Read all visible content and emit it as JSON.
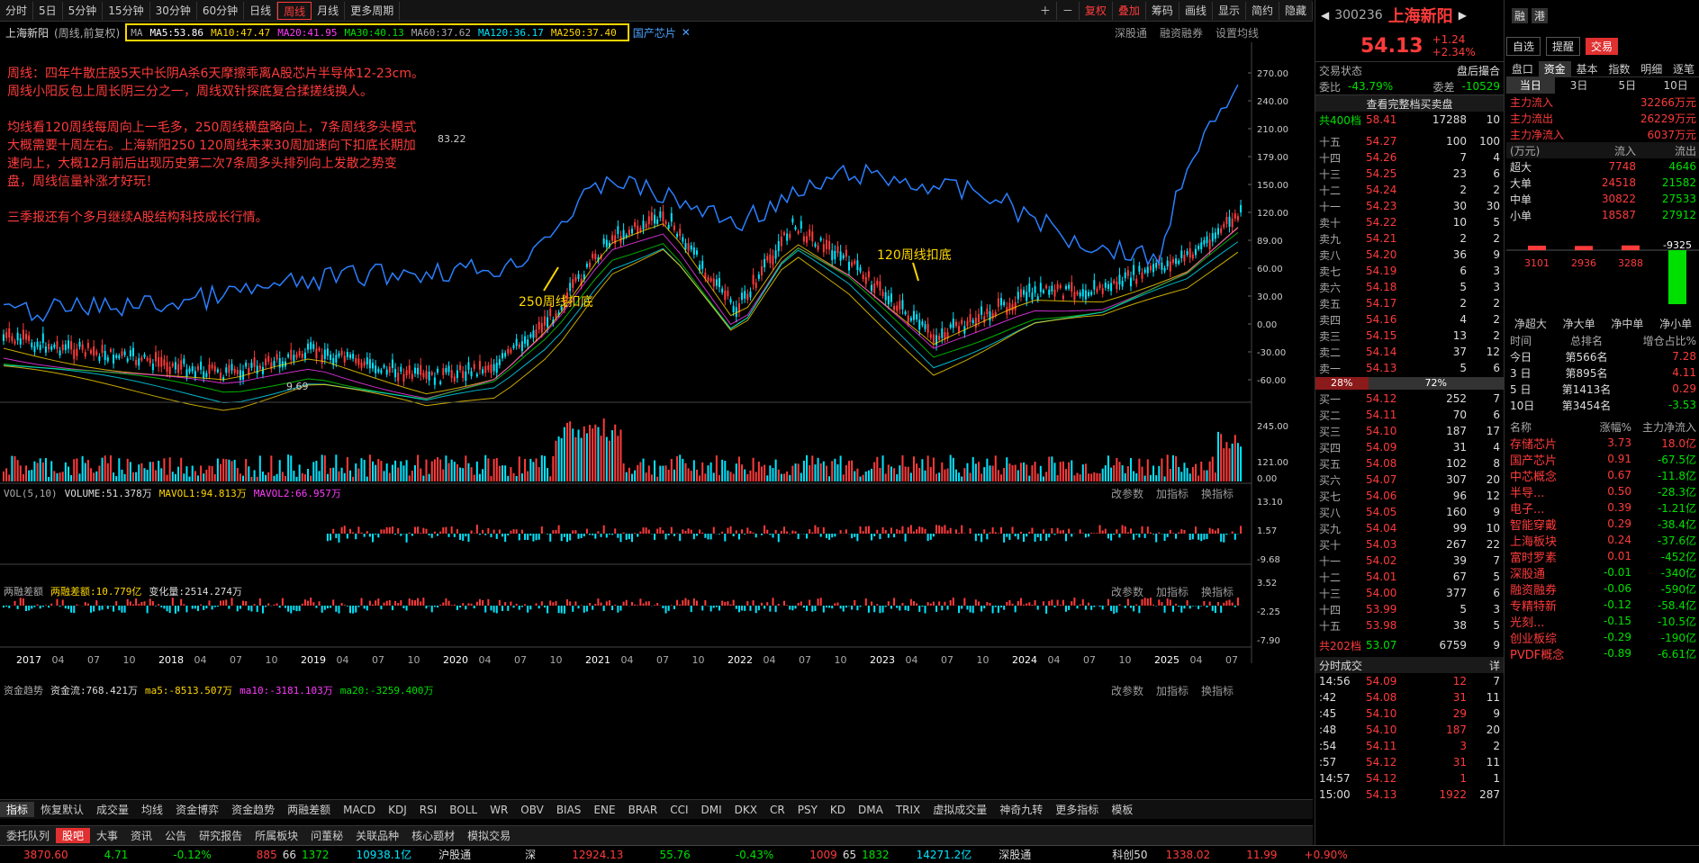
{
  "toolbar": {
    "items": [
      "分时",
      "5日",
      "5分钟",
      "15分钟",
      "30分钟",
      "60分钟",
      "日线",
      "周线",
      "月线",
      "更多周期"
    ],
    "active": "周线",
    "right": [
      "复权",
      "叠加",
      "筹码",
      "画线",
      "显示",
      "简约",
      "隐藏"
    ]
  },
  "chart": {
    "stock_label": "上海新阳",
    "period_label": "(周线,前复权)",
    "ma_prefix": "MA",
    "ma": [
      "MA5:53.86",
      "MA10:47.47",
      "MA20:41.95",
      "MA30:40.13",
      "MA60:37.62",
      "MA120:36.17",
      "MA250:37.40"
    ],
    "ma_colors": [
      "#ffffff",
      "#ffd700",
      "#ff3bff",
      "#00e000",
      "#a0a0a0",
      "#00e5ff",
      "#ffd700"
    ],
    "concept_tag": "国产芯片",
    "right_links": [
      "深股通",
      "融资融券",
      "设置均线"
    ],
    "y_labels": [
      "270.00",
      "240.00",
      "210.00",
      "179.00",
      "150.00",
      "120.00",
      "89.00",
      "60.00",
      "30.00",
      "0.00",
      "-30.00",
      "-60.00"
    ],
    "high_label": "83.22",
    "low_label": "9.69",
    "notes": [
      "周线：四年牛散庄股5天中长阴A杀6天摩擦乖离A股芯片半导体12-23cm。",
      "周线小阳反包上周长阴三分之一，周线双针探底复合揉搓线换人。",
      "",
      "均线看120周线每周向上一毛多，250周线横盘略向上，7条周线多头模式",
      "大概需要十周左右。上海新阳250 120周线未来30周加速向下扣底长期加",
      "速向上，大概12月前后出现历史第二次7条周多头排列向上发散之势变",
      "盘，周线信量补涨才好玩！",
      "",
      "三季报还有个多月继续A股结构科技成长行情。"
    ],
    "annot1": "250周线扣底",
    "annot2": "120周线扣底"
  },
  "vol": {
    "label": "VOL(5,10)",
    "items": [
      "VOLUME:51.378万",
      "MAVOL1:94.813万",
      "MAVOL2:66.957万"
    ],
    "y": [
      "245.00",
      "121.00",
      "0.00"
    ],
    "links": [
      "改参数",
      "加指标",
      "换指标"
    ]
  },
  "margin": {
    "label": "两融差额",
    "items": [
      "两融差额:10.779亿",
      "变化量:2514.274万"
    ],
    "y": [
      "13.10",
      "1.57",
      "-9.68"
    ]
  },
  "fund": {
    "label": "资金趋势",
    "items": [
      "资金流:768.421万",
      "ma5:-8513.507万",
      "ma10:-3181.103万",
      "ma20:-3259.400万"
    ],
    "y": [
      "3.52",
      "-2.25",
      "-7.90"
    ]
  },
  "xaxis": [
    "2017",
    "04",
    "07",
    "10",
    "2018",
    "04",
    "07",
    "10",
    "2019",
    "04",
    "07",
    "10",
    "2020",
    "04",
    "07",
    "10",
    "2021",
    "04",
    "07",
    "10",
    "2022",
    "04",
    "07",
    "10",
    "2023",
    "04",
    "07",
    "10",
    "2024",
    "04",
    "07",
    "10",
    "2025",
    "04",
    "07"
  ],
  "indicator_tabs": [
    "指标",
    "恢复默认",
    "成交量",
    "均线",
    "资金博弈",
    "资金趋势",
    "两融差额",
    "MACD",
    "KDJ",
    "RSI",
    "BOLL",
    "WR",
    "OBV",
    "BIAS",
    "ENE",
    "BRAR",
    "CCI",
    "DMI",
    "DKX",
    "CR",
    "PSY",
    "KD",
    "DMA",
    "TRIX",
    "虚拟成交量",
    "神奇九转",
    "更多指标",
    "模板"
  ],
  "bottom_tabs": [
    "委托队列",
    "股吧",
    "大事",
    "资讯",
    "公告",
    "研究报告",
    "所属板块",
    "问董秘",
    "关联品种",
    "核心题材",
    "模拟交易"
  ],
  "quote": {
    "code": "300236",
    "name": "上海新阳",
    "price": "54.13",
    "change": "+1.24",
    "pct": "+2.34%",
    "badges": [
      "融",
      "港"
    ],
    "buttons": [
      "自选",
      "提醒",
      "交易"
    ],
    "trade_status_label": "交易状态",
    "trade_status": "盘后撮合",
    "webi_label": "委比",
    "webi": "-43.79%",
    "weicha_label": "委差",
    "weicha": "-10529",
    "full_link": "查看完整档买卖盘",
    "total_sell": "共400档",
    "total_sell_p": "58.41",
    "total_sell_v": "17288",
    "total_sell_n": "10",
    "sells": [
      [
        "十五",
        "54.27",
        "100",
        "100"
      ],
      [
        "十四",
        "54.26",
        "7",
        "4"
      ],
      [
        "十三",
        "54.25",
        "23",
        "6"
      ],
      [
        "十二",
        "54.24",
        "2",
        "2"
      ],
      [
        "十一",
        "54.23",
        "30",
        "30"
      ],
      [
        "卖十",
        "54.22",
        "10",
        "5"
      ],
      [
        "卖九",
        "54.21",
        "2",
        "2"
      ],
      [
        "卖八",
        "54.20",
        "36",
        "9"
      ],
      [
        "卖七",
        "54.19",
        "6",
        "3"
      ],
      [
        "卖六",
        "54.18",
        "5",
        "3"
      ],
      [
        "卖五",
        "54.17",
        "2",
        "2"
      ],
      [
        "卖四",
        "54.16",
        "4",
        "2"
      ],
      [
        "卖三",
        "54.15",
        "13",
        "2"
      ],
      [
        "卖二",
        "54.14",
        "37",
        "12"
      ],
      [
        "卖一",
        "54.13",
        "5",
        "6"
      ]
    ],
    "ratio_left": "28%",
    "ratio_right": "72%",
    "ratio_value": 0.28,
    "buys": [
      [
        "买一",
        "54.12",
        "252",
        "7"
      ],
      [
        "买二",
        "54.11",
        "70",
        "6"
      ],
      [
        "买三",
        "54.10",
        "187",
        "17"
      ],
      [
        "买四",
        "54.09",
        "31",
        "4"
      ],
      [
        "买五",
        "54.08",
        "102",
        "8"
      ],
      [
        "买六",
        "54.07",
        "307",
        "20"
      ],
      [
        "买七",
        "54.06",
        "96",
        "12"
      ],
      [
        "买八",
        "54.05",
        "160",
        "9"
      ],
      [
        "买九",
        "54.04",
        "99",
        "10"
      ],
      [
        "买十",
        "54.03",
        "267",
        "22"
      ],
      [
        "十一",
        "54.02",
        "39",
        "7"
      ],
      [
        "十二",
        "54.01",
        "67",
        "5"
      ],
      [
        "十三",
        "54.00",
        "377",
        "6"
      ],
      [
        "十四",
        "53.99",
        "5",
        "3"
      ],
      [
        "十五",
        "53.98",
        "38",
        "5"
      ]
    ],
    "total_buy": "共202档",
    "total_buy_p": "53.07",
    "total_buy_v": "6759",
    "total_buy_n": "9",
    "tick_title": "分时成交",
    "tick_more": "详",
    "ticks": [
      [
        "14:56",
        "54.09",
        "12",
        "7"
      ],
      [
        ":42",
        "54.08",
        "31",
        "11"
      ],
      [
        ":45",
        "54.10",
        "29",
        "9"
      ],
      [
        ":48",
        "54.10",
        "187",
        "20"
      ],
      [
        ":54",
        "54.11",
        "3",
        "2"
      ],
      [
        ":57",
        "54.12",
        "31",
        "11"
      ],
      [
        "14:57",
        "54.12",
        "1",
        "1"
      ],
      [
        "15:00",
        "54.13",
        "1922",
        "287"
      ]
    ]
  },
  "fundpanel": {
    "tabs": [
      "盘口",
      "资金",
      "基本",
      "指数",
      "明细",
      "逐笔"
    ],
    "subtabs": [
      "当日",
      "3日",
      "5日",
      "10日"
    ],
    "main": [
      [
        "主力流入",
        "32266万元"
      ],
      [
        "主力流出",
        "26229万元"
      ],
      [
        "主力净流入",
        "6037万元"
      ]
    ],
    "unit": "(万元)",
    "head": [
      "流入",
      "流出"
    ],
    "rows": [
      [
        "超大",
        "7748",
        "4646"
      ],
      [
        "大单",
        "24518",
        "21582"
      ],
      [
        "中单",
        "30822",
        "27533"
      ],
      [
        "小单",
        "18587",
        "27912"
      ]
    ],
    "net_vals": [
      "3101",
      "2936",
      "3288",
      "-9325"
    ],
    "net_labels": [
      "净超大",
      "净大单",
      "净中单",
      "净小单"
    ],
    "rank_head": [
      "时间",
      "总排名",
      "增仓占比%"
    ],
    "ranks": [
      [
        "今日",
        "第566名",
        "7.28"
      ],
      [
        "3 日",
        "第895名",
        "4.11"
      ],
      [
        "5 日",
        "第1413名",
        "0.29"
      ],
      [
        "10日",
        "第3454名",
        "-3.53"
      ]
    ],
    "sector_head": [
      "名称",
      "涨幅%",
      "主力净流入"
    ],
    "sectors": [
      [
        "存储芯片",
        "3.73",
        "18.0亿"
      ],
      [
        "国产芯片",
        "0.91",
        "-67.5亿"
      ],
      [
        "中芯概念",
        "0.67",
        "-11.8亿"
      ],
      [
        "半导...",
        "0.50",
        "-28.3亿"
      ],
      [
        "电子...",
        "0.39",
        "-1.21亿"
      ],
      [
        "智能穿戴",
        "0.29",
        "-38.4亿"
      ],
      [
        "上海板块",
        "0.24",
        "-37.6亿"
      ],
      [
        "富时罗素",
        "0.01",
        "-452亿"
      ],
      [
        "深股通",
        "-0.01",
        "-340亿"
      ],
      [
        "融资融券",
        "-0.06",
        "-590亿"
      ],
      [
        "专精特新",
        "-0.12",
        "-58.4亿"
      ],
      [
        "光刻...",
        "-0.15",
        "-10.5亿"
      ],
      [
        "创业板综",
        "-0.29",
        "-190亿"
      ],
      [
        "PVDF概念",
        "-0.89",
        "-6.61亿"
      ]
    ]
  },
  "status": {
    "sh": "3870.60",
    "sh_chg": "4.71",
    "sh_pct": "-0.12%",
    "sh_up": "885",
    "sh_flat": "66",
    "sh_dn": "1372",
    "sh_amt": "10938.1亿",
    "hgt": "沪股通",
    "sz_label": "深",
    "sz": "12924.13",
    "sz_chg": "55.76",
    "sz_pct": "-0.43%",
    "sz_up": "1009",
    "sz_flat": "65",
    "sz_dn": "1832",
    "sz_amt": "14271.2亿",
    "sgt": "深股通",
    "kc": "科创50",
    "kc_v": "1338.02",
    "kc_chg": "11.99",
    "kc_pct": "+0.90%"
  },
  "colors": {
    "up": "#ff3b3b",
    "down": "#00e5ff",
    "accent": "#ffd700"
  }
}
